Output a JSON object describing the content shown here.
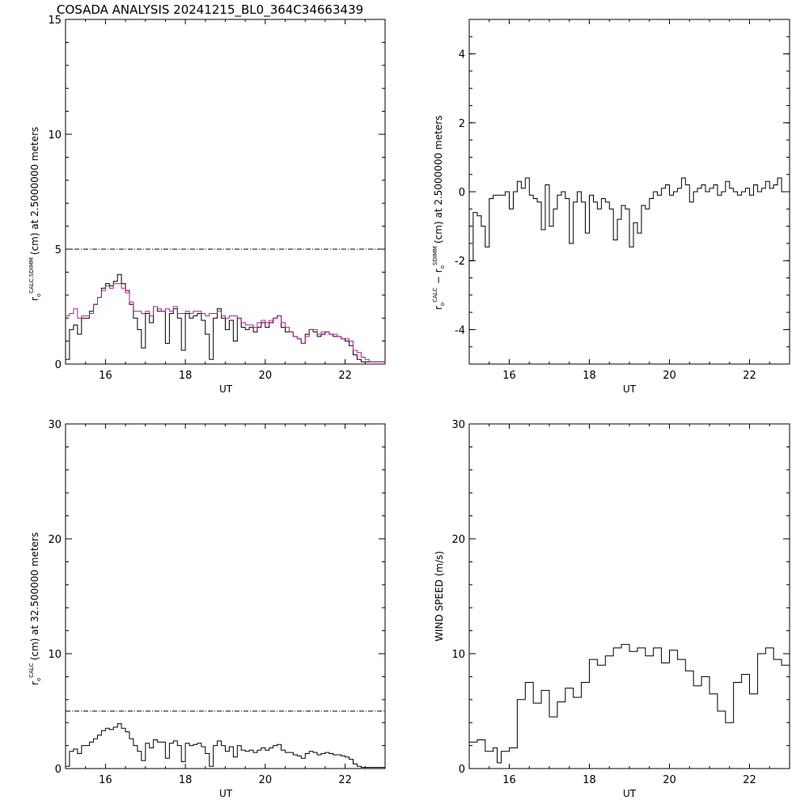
{
  "title": "COSADA ANALYSIS 20241215_BL0_364C34663439",
  "colors": {
    "black": "#000000",
    "magenta": "#c0149a"
  },
  "chart_data": [
    {
      "id": "p1",
      "type": "line",
      "xlabel": "UT",
      "ylabel_parts": {
        "r": "r",
        "o": "o",
        "sup": "CALC,SDIMM",
        "rest": "(cm) at 2.5000000 meters"
      },
      "xlim": [
        15,
        23
      ],
      "ylim": [
        0,
        15
      ],
      "xticks": [
        16,
        18,
        20,
        22
      ],
      "yticks": [
        0,
        5,
        10,
        15
      ],
      "hline": 5,
      "step": true,
      "series": [
        {
          "color": "#000000",
          "x": [
            15.0,
            15.1,
            15.2,
            15.3,
            15.4,
            15.5,
            15.6,
            15.7,
            15.8,
            15.9,
            16.0,
            16.1,
            16.2,
            16.3,
            16.4,
            16.5,
            16.6,
            16.7,
            16.8,
            16.9,
            17.0,
            17.1,
            17.2,
            17.3,
            17.4,
            17.5,
            17.6,
            17.7,
            17.8,
            17.9,
            18.0,
            18.1,
            18.2,
            18.3,
            18.4,
            18.5,
            18.6,
            18.7,
            18.8,
            18.9,
            19.0,
            19.1,
            19.2,
            19.3,
            19.4,
            19.5,
            19.6,
            19.7,
            19.8,
            19.9,
            20.0,
            20.1,
            20.2,
            20.3,
            20.4,
            20.5,
            20.6,
            20.7,
            20.8,
            20.9,
            21.0,
            21.1,
            21.2,
            21.3,
            21.4,
            21.5,
            21.6,
            21.7,
            21.8,
            21.9,
            22.0,
            22.1,
            22.2,
            22.3,
            22.4,
            22.5,
            22.6,
            22.7,
            22.8,
            22.9
          ],
          "y": [
            0.2,
            1.5,
            1.7,
            1.3,
            2.0,
            2.0,
            2.3,
            2.6,
            2.9,
            3.3,
            3.5,
            3.4,
            3.6,
            3.9,
            3.5,
            3.2,
            2.6,
            2.0,
            1.5,
            0.7,
            2.2,
            1.8,
            2.5,
            2.3,
            2.3,
            0.9,
            2.2,
            2.4,
            2.0,
            0.6,
            2.2,
            2.0,
            2.1,
            2.2,
            1.9,
            1.3,
            0.2,
            2.0,
            2.4,
            2.0,
            1.5,
            1.9,
            1.0,
            2.0,
            1.6,
            1.5,
            1.6,
            1.4,
            1.6,
            1.8,
            1.6,
            1.8,
            2.0,
            2.1,
            1.6,
            1.4,
            1.4,
            1.2,
            1.1,
            0.9,
            1.3,
            1.5,
            1.4,
            1.2,
            1.3,
            1.4,
            1.3,
            1.2,
            1.2,
            1.1,
            1.0,
            0.8,
            0.4,
            0.2,
            0.1,
            0.1,
            0.1,
            0.1,
            0.1,
            0.1
          ]
        },
        {
          "color": "#c0149a",
          "x": [
            15.0,
            15.1,
            15.2,
            15.3,
            15.4,
            15.5,
            15.6,
            15.7,
            15.8,
            15.9,
            16.0,
            16.1,
            16.2,
            16.3,
            16.4,
            16.5,
            16.6,
            16.7,
            16.8,
            16.9,
            17.0,
            17.1,
            17.2,
            17.3,
            17.4,
            17.5,
            17.6,
            17.7,
            17.8,
            17.9,
            18.0,
            18.1,
            18.2,
            18.3,
            18.4,
            18.5,
            18.6,
            18.7,
            18.8,
            18.9,
            19.0,
            19.1,
            19.2,
            19.3,
            19.4,
            19.5,
            19.6,
            19.7,
            19.8,
            19.9,
            20.0,
            20.1,
            20.2,
            20.3,
            20.4,
            20.5,
            20.6,
            20.7,
            20.8,
            20.9,
            21.0,
            21.1,
            21.2,
            21.3,
            21.4,
            21.5,
            21.6,
            21.7,
            21.8,
            21.9,
            22.0,
            22.1,
            22.2,
            22.3,
            22.4,
            22.5,
            22.6,
            22.7,
            22.8,
            22.9
          ],
          "y": [
            2.1,
            2.2,
            2.4,
            2.0,
            2.1,
            2.1,
            2.2,
            2.6,
            2.9,
            3.2,
            3.4,
            3.3,
            3.5,
            3.5,
            3.3,
            3.1,
            2.7,
            2.3,
            2.3,
            2.2,
            2.3,
            2.1,
            2.5,
            2.4,
            2.3,
            2.4,
            2.3,
            2.5,
            2.2,
            2.2,
            2.3,
            2.2,
            2.3,
            2.3,
            2.2,
            2.1,
            2.2,
            2.2,
            2.3,
            2.1,
            2.0,
            2.1,
            2.1,
            2.0,
            1.8,
            1.7,
            1.7,
            1.6,
            1.8,
            1.9,
            1.8,
            1.9,
            2.0,
            2.1,
            1.8,
            1.6,
            1.4,
            1.2,
            1.1,
            0.9,
            1.2,
            1.5,
            1.5,
            1.3,
            1.4,
            1.4,
            1.3,
            1.3,
            1.2,
            1.1,
            1.1,
            1.0,
            0.6,
            0.5,
            0.3,
            0.2,
            0.1,
            0.1,
            0.1,
            0.1
          ]
        }
      ]
    },
    {
      "id": "p2",
      "type": "line",
      "xlabel": "UT",
      "ylabel_parts": {
        "r": "r",
        "o": "o",
        "sup": "CALC",
        "minus": "−",
        "r2": "r",
        "o2": "o",
        "sup2": "SDIMM",
        "rest": "(cm) at 2.5000000 meters"
      },
      "xlim": [
        15,
        23
      ],
      "ylim": [
        -5,
        5
      ],
      "xticks": [
        16,
        18,
        20,
        22
      ],
      "yticks": [
        -4,
        -2,
        0,
        2,
        4
      ],
      "step": true,
      "series": [
        {
          "color": "#000000",
          "x": [
            15.0,
            15.1,
            15.2,
            15.3,
            15.4,
            15.5,
            15.6,
            15.7,
            15.8,
            15.9,
            16.0,
            16.1,
            16.2,
            16.3,
            16.4,
            16.5,
            16.6,
            16.7,
            16.8,
            16.9,
            17.0,
            17.1,
            17.2,
            17.3,
            17.4,
            17.5,
            17.6,
            17.7,
            17.8,
            17.9,
            18.0,
            18.1,
            18.2,
            18.3,
            18.4,
            18.5,
            18.6,
            18.7,
            18.8,
            18.9,
            19.0,
            19.1,
            19.2,
            19.3,
            19.4,
            19.5,
            19.6,
            19.7,
            19.8,
            19.9,
            20.0,
            20.1,
            20.2,
            20.3,
            20.4,
            20.5,
            20.6,
            20.7,
            20.8,
            20.9,
            21.0,
            21.1,
            21.2,
            21.3,
            21.4,
            21.5,
            21.6,
            21.7,
            21.8,
            21.9,
            22.0,
            22.1,
            22.2,
            22.3,
            22.4,
            22.5,
            22.6,
            22.7,
            22.8,
            22.9
          ],
          "y": [
            -2.0,
            -0.6,
            -0.7,
            -1.0,
            -1.6,
            -0.2,
            -0.1,
            -0.1,
            -0.1,
            0.0,
            -0.5,
            0.0,
            0.3,
            0.1,
            0.4,
            -0.1,
            -0.2,
            -0.3,
            -1.1,
            0.2,
            -1.0,
            -0.5,
            -0.1,
            0.0,
            -0.2,
            -1.5,
            -0.3,
            0.0,
            -0.3,
            -1.2,
            -0.1,
            -0.3,
            -0.5,
            -0.2,
            -0.3,
            -0.5,
            -1.4,
            -0.8,
            -0.4,
            -0.5,
            -1.6,
            -0.9,
            -1.2,
            -0.4,
            -0.5,
            -0.2,
            0.0,
            -0.1,
            0.1,
            0.2,
            -0.1,
            0.0,
            0.1,
            0.4,
            0.2,
            -0.3,
            0.0,
            0.1,
            0.2,
            0.0,
            0.1,
            0.2,
            -0.1,
            0.0,
            0.3,
            0.1,
            0.0,
            -0.1,
            0.0,
            0.1,
            -0.1,
            0.2,
            0.0,
            0.1,
            0.3,
            0.1,
            0.2,
            0.4,
            0.0,
            0.0
          ]
        }
      ]
    },
    {
      "id": "p3",
      "type": "line",
      "xlabel": "UT",
      "ylabel_parts": {
        "r": "r",
        "o": "o",
        "sup": "CALC",
        "rest": "(cm) at 32.500000 meters"
      },
      "xlim": [
        15,
        23
      ],
      "ylim": [
        0,
        30
      ],
      "xticks": [
        16,
        18,
        20,
        22
      ],
      "yticks": [
        0,
        10,
        20,
        30
      ],
      "hline": 5,
      "step": true,
      "series": [
        {
          "color": "#000000",
          "x": [
            15.0,
            15.1,
            15.2,
            15.3,
            15.4,
            15.5,
            15.6,
            15.7,
            15.8,
            15.9,
            16.0,
            16.1,
            16.2,
            16.3,
            16.4,
            16.5,
            16.6,
            16.7,
            16.8,
            16.9,
            17.0,
            17.1,
            17.2,
            17.3,
            17.4,
            17.5,
            17.6,
            17.7,
            17.8,
            17.9,
            18.0,
            18.1,
            18.2,
            18.3,
            18.4,
            18.5,
            18.6,
            18.7,
            18.8,
            18.9,
            19.0,
            19.1,
            19.2,
            19.3,
            19.4,
            19.5,
            19.6,
            19.7,
            19.8,
            19.9,
            20.0,
            20.1,
            20.2,
            20.3,
            20.4,
            20.5,
            20.6,
            20.7,
            20.8,
            20.9,
            21.0,
            21.1,
            21.2,
            21.3,
            21.4,
            21.5,
            21.6,
            21.7,
            21.8,
            21.9,
            22.0,
            22.1,
            22.2,
            22.3,
            22.4,
            22.5,
            22.6,
            22.7,
            22.8,
            22.9
          ],
          "y": [
            0.2,
            1.5,
            1.7,
            1.3,
            2.0,
            2.0,
            2.3,
            2.6,
            2.9,
            3.3,
            3.5,
            3.4,
            3.6,
            3.9,
            3.5,
            3.2,
            2.6,
            2.0,
            1.5,
            0.7,
            2.2,
            1.8,
            2.5,
            2.3,
            2.3,
            0.9,
            2.2,
            2.4,
            2.0,
            0.6,
            2.2,
            2.0,
            2.1,
            2.2,
            1.9,
            1.3,
            0.2,
            2.0,
            2.4,
            2.0,
            1.5,
            1.9,
            1.0,
            2.0,
            1.6,
            1.5,
            1.6,
            1.4,
            1.6,
            1.8,
            1.6,
            1.8,
            2.0,
            2.1,
            1.6,
            1.4,
            1.4,
            1.2,
            1.1,
            0.9,
            1.3,
            1.5,
            1.4,
            1.2,
            1.3,
            1.4,
            1.3,
            1.2,
            1.2,
            1.1,
            1.0,
            0.8,
            0.4,
            0.2,
            0.1,
            0.1,
            0.1,
            0.1,
            0.1,
            0.1
          ]
        }
      ]
    },
    {
      "id": "p4",
      "type": "line",
      "xlabel": "UT",
      "ylabel": "WIND SPEED (m/s)",
      "xlim": [
        15,
        23
      ],
      "ylim": [
        0,
        30
      ],
      "xticks": [
        16,
        18,
        20,
        22
      ],
      "yticks": [
        0,
        10,
        20,
        30
      ],
      "step": true,
      "series": [
        {
          "color": "#000000",
          "x": [
            15.0,
            15.2,
            15.4,
            15.6,
            15.7,
            15.8,
            16.0,
            16.2,
            16.4,
            16.6,
            16.8,
            17.0,
            17.2,
            17.4,
            17.6,
            17.8,
            18.0,
            18.2,
            18.4,
            18.6,
            18.8,
            19.0,
            19.2,
            19.4,
            19.6,
            19.8,
            20.0,
            20.2,
            20.4,
            20.6,
            20.8,
            21.0,
            21.2,
            21.4,
            21.6,
            21.8,
            22.0,
            22.2,
            22.4,
            22.6,
            22.8
          ],
          "y": [
            2.3,
            2.5,
            1.5,
            1.8,
            0.5,
            1.5,
            1.8,
            6.0,
            7.5,
            5.7,
            6.8,
            4.5,
            5.8,
            7.0,
            6.2,
            7.5,
            9.5,
            9.0,
            9.8,
            10.5,
            10.8,
            10.2,
            10.5,
            9.8,
            10.5,
            9.2,
            10.3,
            9.5,
            8.5,
            7.2,
            8.0,
            6.5,
            5.0,
            4.0,
            7.5,
            8.2,
            6.5,
            10.0,
            10.5,
            9.5,
            9.0
          ]
        }
      ]
    }
  ]
}
